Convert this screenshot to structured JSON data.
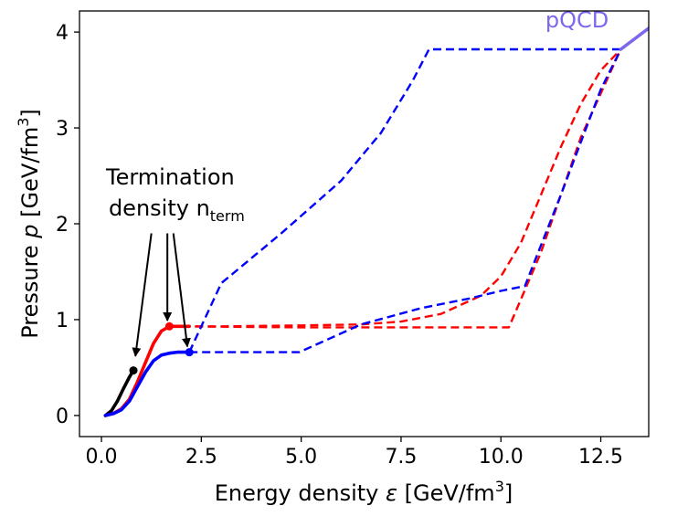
{
  "chart_data": {
    "type": "line",
    "title": "",
    "xlabel": {
      "main": "Energy density ",
      "sym": "ε",
      "unit": " [GeV/fm",
      "sup": "3",
      "close": "]"
    },
    "ylabel": {
      "main": "Pressure ",
      "sym": "p",
      "unit": " [GeV/fm",
      "sup": "3",
      "close": "]"
    },
    "xlim": [
      -0.55,
      13.7
    ],
    "ylim": [
      -0.22,
      4.22
    ],
    "xticks": [
      0.0,
      2.5,
      5.0,
      7.5,
      10.0,
      12.5
    ],
    "xtick_labels": [
      "0.0",
      "2.5",
      "5.0",
      "7.5",
      "10.0",
      "12.5"
    ],
    "yticks": [
      0,
      1,
      2,
      3,
      4
    ],
    "ytick_labels": [
      "0",
      "1",
      "2",
      "3",
      "4"
    ],
    "grid": false,
    "colors": {
      "black": "#000000",
      "red": "#ff0000",
      "blue": "#0000ff",
      "pqcd": "#7b68ee"
    },
    "series": [
      {
        "color": "#000000",
        "style": "solid",
        "x": [
          0.1,
          0.25,
          0.4,
          0.55,
          0.7,
          0.8
        ],
        "y": [
          0.0,
          0.05,
          0.15,
          0.28,
          0.4,
          0.47
        ]
      },
      {
        "color": "#ff0000",
        "style": "solid",
        "x": [
          0.1,
          0.3,
          0.5,
          0.7,
          0.9,
          1.1,
          1.3,
          1.5,
          1.7,
          2.2
        ],
        "y": [
          0.0,
          0.02,
          0.07,
          0.17,
          0.35,
          0.55,
          0.75,
          0.88,
          0.93,
          0.93
        ]
      },
      {
        "color": "#0000ff",
        "style": "solid",
        "x": [
          0.1,
          0.3,
          0.5,
          0.7,
          0.9,
          1.1,
          1.3,
          1.5,
          1.7,
          1.9,
          2.2
        ],
        "y": [
          0.0,
          0.02,
          0.06,
          0.15,
          0.3,
          0.45,
          0.57,
          0.63,
          0.65,
          0.66,
          0.66
        ]
      },
      {
        "color": "#ff0000",
        "style": "dashed",
        "x": [
          1.7,
          3.0,
          5.0,
          6.5,
          7.5,
          8.5,
          9.5,
          10.0,
          10.5,
          11.0,
          11.5,
          12.0,
          12.5,
          13.0
        ],
        "y": [
          0.93,
          0.93,
          0.94,
          0.95,
          0.98,
          1.06,
          1.25,
          1.45,
          1.8,
          2.3,
          2.8,
          3.25,
          3.6,
          3.82
        ]
      },
      {
        "color": "#ff0000",
        "style": "dashed",
        "x": [
          1.7,
          5.0,
          10.2,
          11.0,
          12.0,
          13.0
        ],
        "y": [
          0.93,
          0.92,
          0.92,
          1.7,
          2.9,
          3.82
        ]
      },
      {
        "color": "#0000ff",
        "style": "dashed",
        "x": [
          2.2,
          3.0,
          4.5,
          6.0,
          7.0,
          7.8,
          8.2,
          13.0
        ],
        "y": [
          0.66,
          1.38,
          1.9,
          2.45,
          2.95,
          3.5,
          3.82,
          3.82
        ]
      },
      {
        "color": "#0000ff",
        "style": "dashed",
        "x": [
          2.2,
          4.95,
          6.5,
          8.0,
          9.2,
          10.0,
          10.6,
          11.5,
          12.5,
          13.0
        ],
        "y": [
          0.66,
          0.66,
          0.95,
          1.12,
          1.22,
          1.3,
          1.35,
          2.3,
          3.4,
          3.82
        ]
      },
      {
        "color": "#7b68ee",
        "style": "solid",
        "x": [
          13.0,
          13.7
        ],
        "y": [
          3.82,
          4.04
        ]
      }
    ],
    "markers": [
      {
        "x": 0.8,
        "y": 0.47,
        "color": "#000000"
      },
      {
        "x": 1.7,
        "y": 0.93,
        "color": "#ff0000"
      },
      {
        "x": 2.2,
        "y": 0.66,
        "color": "#0000ff"
      }
    ],
    "annotation": {
      "line1": "Termination",
      "line2": "density n",
      "sub": "term",
      "anchor_x": 1.7,
      "anchor_y": 2.03,
      "arrows": [
        {
          "from": [
            1.25,
            1.9
          ],
          "to": [
            0.85,
            0.62
          ]
        },
        {
          "from": [
            1.65,
            1.9
          ],
          "to": [
            1.65,
            0.99
          ]
        },
        {
          "from": [
            1.8,
            1.9
          ],
          "to": [
            2.15,
            0.72
          ]
        }
      ]
    },
    "pqcd_label": {
      "text": "pQCD",
      "x": 12.7,
      "y": 4.05,
      "color": "#7b68ee"
    }
  }
}
